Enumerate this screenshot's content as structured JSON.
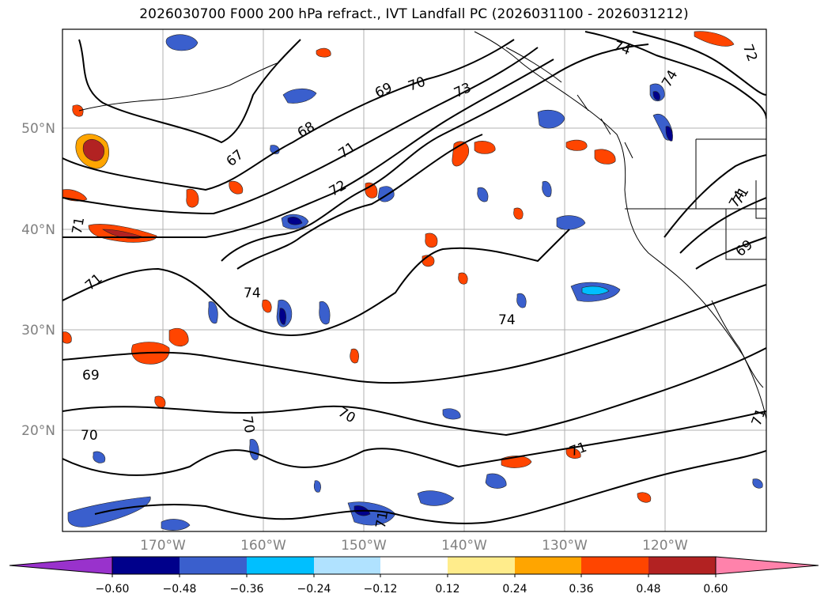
{
  "title": "2026030700 F000 200 hPa refract., IVT Landfall PC (2026031100 - 2026031212)",
  "lat_labels": [
    "50°N",
    "40°N",
    "30°N",
    "20°N"
  ],
  "lon_labels": [
    "170°W",
    "160°W",
    "150°W",
    "140°W",
    "130°W",
    "120°W"
  ],
  "colorbar": {
    "ticks": [
      "−0.60",
      "−0.48",
      "−0.36",
      "−0.24",
      "−0.12",
      "0.12",
      "0.24",
      "0.36",
      "0.48",
      "0.60"
    ],
    "colors": [
      "#9932cc",
      "#00008b",
      "#3a5fcd",
      "#00bfff",
      "#b0e2ff",
      "#ffffff",
      "#ffec8b",
      "#ffa500",
      "#ff4500",
      "#b22222",
      "#ff82ab"
    ]
  },
  "contour_labels": [
    "67",
    "68",
    "69",
    "70",
    "71",
    "72",
    "73",
    "74",
    "74",
    "74",
    "71",
    "71",
    "71",
    "71",
    "69",
    "70",
    "70",
    "70",
    "74",
    "74",
    "71",
    "72",
    "69",
    "71"
  ]
}
